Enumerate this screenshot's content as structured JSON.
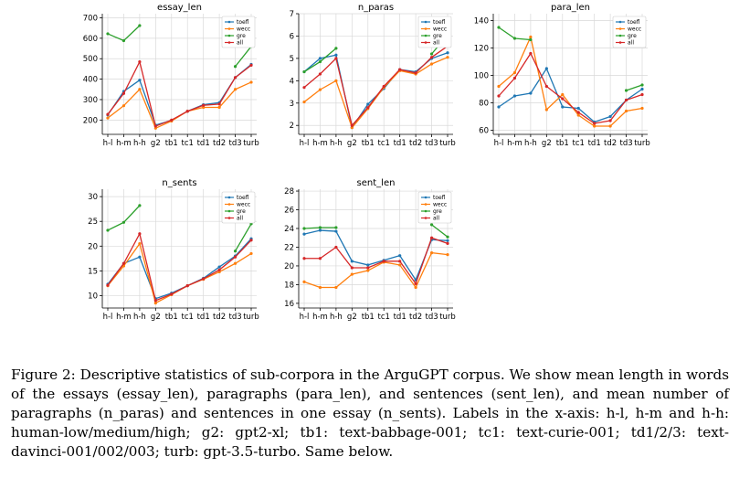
{
  "caption": "Figure 2: Descriptive statistics of sub-corpora in the ArguGPT corpus. We show mean length in words of the essays (essay_len), paragraphs (para_len), and sentences (sent_len), and mean number of paragraphs (n_paras) and sentences in one essay (n_sents). Labels in the x-axis: h-l, h-m and h-h: human-low/medium/high; g2: gpt2-xl; tb1: text-babbage-001; tc1: text-curie-001; td1/2/3: text-davinci-001/002/003; turb: gpt-3.5-turbo. Same below.",
  "series_colors": {
    "toefl": "#1f77b4",
    "wecc": "#ff7f0e",
    "gre": "#2ca02c",
    "all": "#d62728"
  },
  "chart_data": [
    {
      "type": "line",
      "title": "essay_len",
      "categories": [
        "h-l",
        "h-m",
        "h-h",
        "g2",
        "tb1",
        "tc1",
        "td1",
        "td2",
        "td3",
        "turb"
      ],
      "ylim": [
        130,
        720
      ],
      "yticks": [
        200,
        300,
        400,
        500,
        600,
        700
      ],
      "legend": "top-right",
      "grid": true,
      "series": [
        {
          "name": "toefl",
          "values": [
            225,
            340,
            395,
            175,
            198,
            243,
            275,
            285,
            408,
            472
          ]
        },
        {
          "name": "wecc",
          "values": [
            210,
            270,
            350,
            160,
            195,
            243,
            262,
            262,
            350,
            385
          ]
        },
        {
          "name": "gre",
          "values": [
            622,
            588,
            662,
            null,
            null,
            null,
            null,
            null,
            462,
            560
          ]
        },
        {
          "name": "all",
          "values": [
            228,
            330,
            485,
            170,
            200,
            243,
            272,
            278,
            408,
            468
          ]
        }
      ]
    },
    {
      "type": "line",
      "title": "n_paras",
      "categories": [
        "h-l",
        "h-m",
        "h-h",
        "g2",
        "tb1",
        "tc1",
        "td1",
        "td2",
        "td3",
        "turb"
      ],
      "ylim": [
        1.6,
        7.0
      ],
      "yticks": [
        2,
        3,
        4,
        5,
        6,
        7
      ],
      "legend": "top-right",
      "grid": true,
      "series": [
        {
          "name": "toefl",
          "values": [
            4.4,
            5.0,
            5.15,
            1.9,
            2.95,
            3.65,
            4.5,
            4.4,
            5.0,
            5.25
          ]
        },
        {
          "name": "wecc",
          "values": [
            3.05,
            3.6,
            4.0,
            1.9,
            2.75,
            3.7,
            4.45,
            4.3,
            4.75,
            5.05
          ]
        },
        {
          "name": "gre",
          "values": [
            4.4,
            4.85,
            5.45,
            null,
            null,
            null,
            null,
            null,
            5.2,
            6.05
          ]
        },
        {
          "name": "all",
          "values": [
            3.7,
            4.3,
            5.0,
            2.0,
            2.8,
            3.75,
            4.5,
            4.35,
            5.05,
            5.55
          ]
        }
      ]
    },
    {
      "type": "line",
      "title": "para_len",
      "categories": [
        "h-l",
        "h-m",
        "h-h",
        "g2",
        "tb1",
        "tc1",
        "td1",
        "td2",
        "td3",
        "turb"
      ],
      "ylim": [
        57,
        145
      ],
      "yticks": [
        60,
        80,
        100,
        120,
        140
      ],
      "legend": "top-right",
      "grid": true,
      "series": [
        {
          "name": "toefl",
          "values": [
            77,
            85,
            87,
            105,
            77,
            76,
            66,
            70,
            82,
            90
          ]
        },
        {
          "name": "wecc",
          "values": [
            92,
            102,
            128,
            75,
            86,
            71,
            63,
            63,
            74,
            76
          ]
        },
        {
          "name": "gre",
          "values": [
            135,
            127,
            126,
            null,
            null,
            null,
            null,
            null,
            89,
            93
          ]
        },
        {
          "name": "all",
          "values": [
            85,
            98,
            116,
            92,
            83,
            73,
            65,
            67,
            82,
            86
          ]
        }
      ]
    },
    {
      "type": "line",
      "title": "n_sents",
      "categories": [
        "h-l",
        "h-m",
        "h-h",
        "g2",
        "tb1",
        "tc1",
        "td1",
        "td2",
        "td3",
        "turb"
      ],
      "ylim": [
        7.5,
        31.5
      ],
      "yticks": [
        10,
        15,
        20,
        25,
        30
      ],
      "legend": "top-right",
      "grid": true,
      "series": [
        {
          "name": "toefl",
          "values": [
            12.3,
            16.5,
            17.8,
            9.4,
            10.5,
            12.0,
            13.5,
            15.8,
            18.0,
            21.5
          ]
        },
        {
          "name": "wecc",
          "values": [
            12.0,
            16.0,
            20.5,
            8.5,
            10.2,
            12.0,
            13.3,
            14.8,
            16.5,
            18.5
          ]
        },
        {
          "name": "gre",
          "values": [
            23.2,
            24.8,
            28.2,
            null,
            null,
            null,
            null,
            null,
            19.0,
            24.5
          ]
        },
        {
          "name": "all",
          "values": [
            12.1,
            16.5,
            22.5,
            9.0,
            10.3,
            12.0,
            13.4,
            15.2,
            17.8,
            21.2
          ]
        }
      ]
    },
    {
      "type": "line",
      "title": "sent_len",
      "categories": [
        "h-l",
        "h-m",
        "h-h",
        "g2",
        "tb1",
        "tc1",
        "td1",
        "td2",
        "td3",
        "turb"
      ],
      "ylim": [
        15.5,
        28.2
      ],
      "yticks": [
        16,
        18,
        20,
        22,
        24,
        26,
        28
      ],
      "legend": "top-right",
      "grid": true,
      "series": [
        {
          "name": "toefl",
          "values": [
            23.4,
            23.8,
            23.7,
            20.5,
            20.1,
            20.6,
            21.1,
            18.5,
            22.8,
            22.7
          ]
        },
        {
          "name": "wecc",
          "values": [
            18.3,
            17.7,
            17.7,
            19.1,
            19.5,
            20.4,
            20.1,
            17.7,
            21.4,
            21.2
          ]
        },
        {
          "name": "gre",
          "values": [
            24.0,
            24.1,
            24.1,
            null,
            null,
            null,
            null,
            null,
            24.4,
            23.1
          ]
        },
        {
          "name": "all",
          "values": [
            20.8,
            20.8,
            22.0,
            19.8,
            19.8,
            20.5,
            20.5,
            18.1,
            23.0,
            22.4
          ]
        }
      ]
    }
  ]
}
